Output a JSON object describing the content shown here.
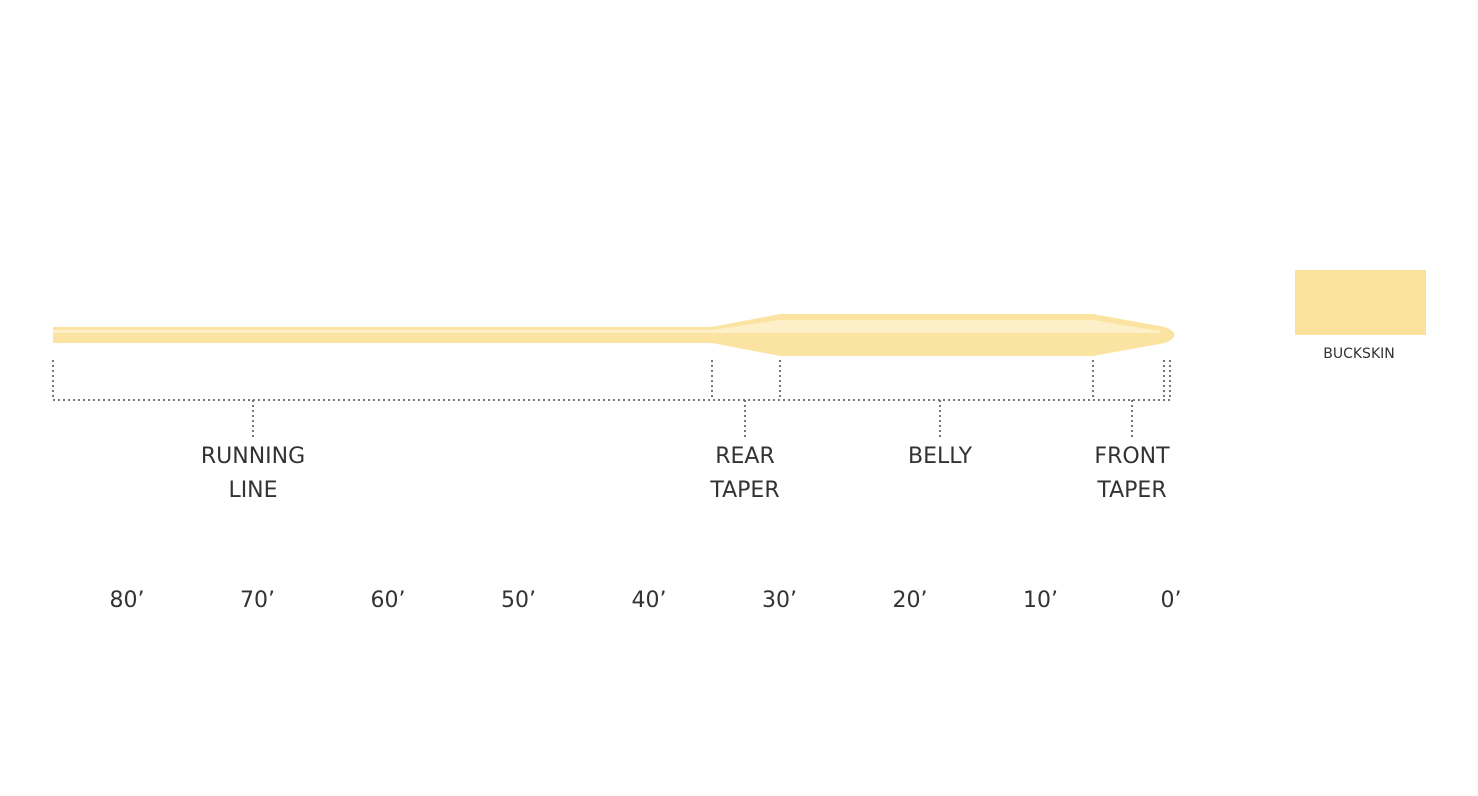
{
  "sections": [
    {
      "lines": [
        "RUNNING",
        "LINE"
      ]
    },
    {
      "lines": [
        "REAR",
        "TAPER"
      ]
    },
    {
      "lines": [
        "BELLY"
      ]
    },
    {
      "lines": [
        "FRONT",
        "TAPER"
      ]
    }
  ],
  "scale": [
    "80’",
    "70’",
    "60’",
    "50’",
    "40’",
    "30’",
    "20’",
    "10’",
    "0’"
  ],
  "swatch": {
    "label": "BUCKSKIN"
  }
}
